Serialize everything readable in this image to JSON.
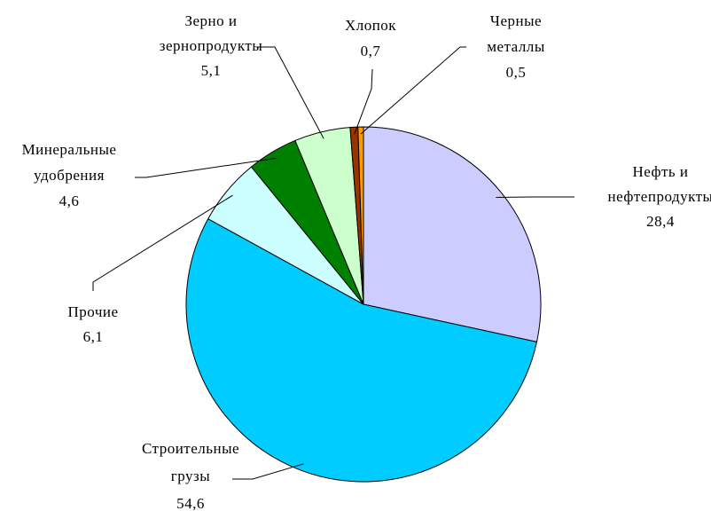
{
  "chart_data": {
    "type": "pie",
    "categories": [
      [
        "Нефть и",
        "нефтепродукты"
      ],
      [
        "Строительные",
        "грузы"
      ],
      [
        "Прочие"
      ],
      [
        "Минеральные",
        "удобрения"
      ],
      [
        "Зерно и",
        "зернопродукты"
      ],
      [
        "Хлопок"
      ],
      [
        "Черные",
        "металлы"
      ]
    ],
    "values": [
      28.4,
      54.6,
      6.1,
      4.6,
      5.1,
      0.7,
      0.5
    ],
    "value_labels": [
      "28,4",
      "54,6",
      "6,1",
      "4,6",
      "5,1",
      "0,7",
      "0,5"
    ],
    "colors": [
      "#ccccff",
      "#00ccff",
      "#ccffff",
      "#008000",
      "#ccffcc",
      "#993300",
      "#ff9900"
    ]
  }
}
